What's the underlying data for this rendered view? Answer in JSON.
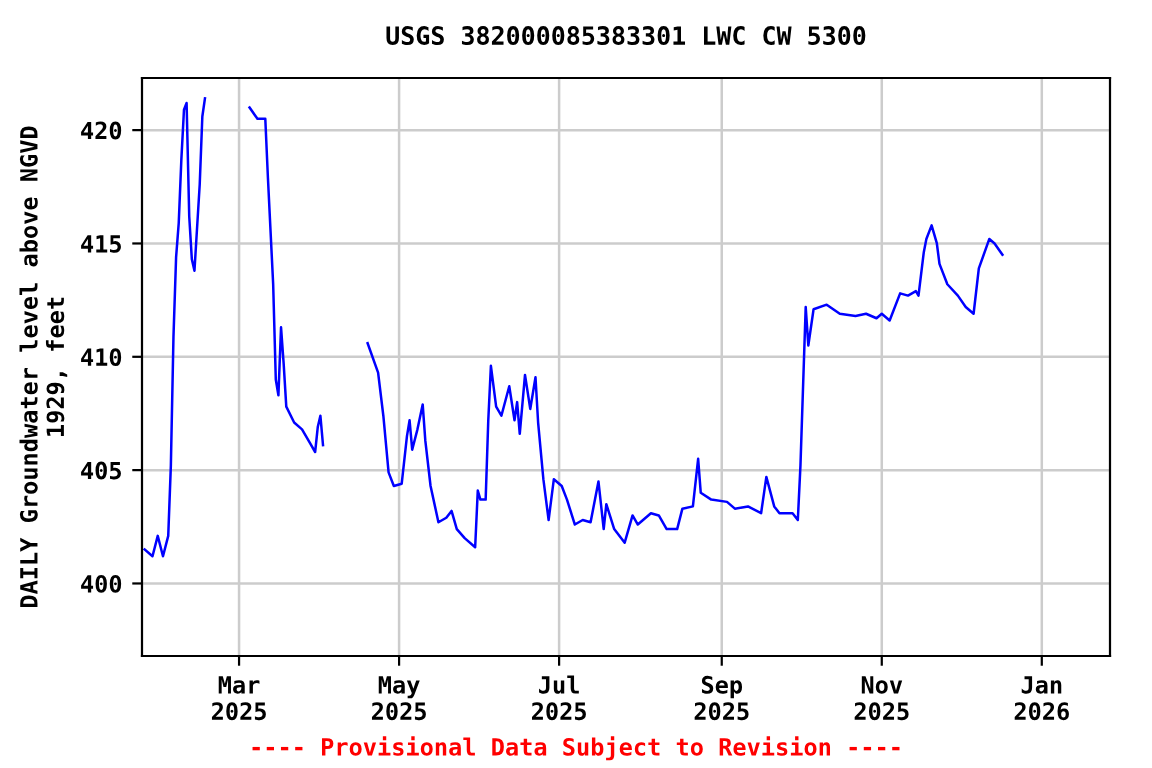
{
  "chart_data": {
    "type": "line",
    "title": "USGS 382000085383301 LWC CW 5300",
    "ylabel": "DAILY Groundwater level above NGVD\n1929, feet",
    "x": [
      "2025-01-24",
      "2025-01-27",
      "2025-01-29",
      "2025-01-31",
      "2025-02-02",
      "2025-02-03",
      "2025-02-04",
      "2025-02-05",
      "2025-02-06",
      "2025-02-07",
      "2025-02-08",
      "2025-02-09",
      "2025-02-10",
      "2025-02-11",
      "2025-02-12",
      "2025-02-14",
      "2025-02-15",
      "2025-02-16",
      "2025-02-25",
      "2025-03-05",
      "2025-03-08",
      "2025-03-11",
      "2025-03-12",
      "2025-03-14",
      "2025-03-15",
      "2025-03-16",
      "2025-03-17",
      "2025-03-18",
      "2025-03-19",
      "2025-03-22",
      "2025-03-25",
      "2025-03-28",
      "2025-03-30",
      "2025-03-31",
      "2025-04-01",
      "2025-04-02",
      "2025-04-10",
      "2025-04-19",
      "2025-04-23",
      "2025-04-25",
      "2025-04-27",
      "2025-04-29",
      "2025-05-02",
      "2025-05-04",
      "2025-05-05",
      "2025-05-06",
      "2025-05-08",
      "2025-05-10",
      "2025-05-11",
      "2025-05-13",
      "2025-05-16",
      "2025-05-19",
      "2025-05-21",
      "2025-05-23",
      "2025-05-26",
      "2025-05-30",
      "2025-05-31",
      "2025-06-01",
      "2025-06-03",
      "2025-06-04",
      "2025-06-05",
      "2025-06-07",
      "2025-06-09",
      "2025-06-12",
      "2025-06-14",
      "2025-06-15",
      "2025-06-16",
      "2025-06-18",
      "2025-06-20",
      "2025-06-22",
      "2025-06-23",
      "2025-06-25",
      "2025-06-27",
      "2025-06-29",
      "2025-07-02",
      "2025-07-04",
      "2025-07-07",
      "2025-07-10",
      "2025-07-13",
      "2025-07-16",
      "2025-07-18",
      "2025-07-19",
      "2025-07-22",
      "2025-07-26",
      "2025-07-29",
      "2025-07-31",
      "2025-08-05",
      "2025-08-08",
      "2025-08-11",
      "2025-08-15",
      "2025-08-17",
      "2025-08-21",
      "2025-08-23",
      "2025-08-24",
      "2025-08-28",
      "2025-09-03",
      "2025-09-06",
      "2025-09-11",
      "2025-09-16",
      "2025-09-18",
      "2025-09-21",
      "2025-09-23",
      "2025-09-28",
      "2025-09-30",
      "2025-10-01",
      "2025-10-02",
      "2025-10-03",
      "2025-10-04",
      "2025-10-06",
      "2025-10-11",
      "2025-10-16",
      "2025-10-22",
      "2025-10-26",
      "2025-10-30",
      "2025-11-01",
      "2025-11-04",
      "2025-11-08",
      "2025-11-11",
      "2025-11-14",
      "2025-11-15",
      "2025-11-17",
      "2025-11-18",
      "2025-11-20",
      "2025-11-22",
      "2025-11-23",
      "2025-11-26",
      "2025-11-30",
      "2025-12-03",
      "2025-12-06",
      "2025-12-08",
      "2025-12-12",
      "2025-12-14",
      "2025-12-17"
    ],
    "series": [
      {
        "color": "#0000ff",
        "values": [
          401.5,
          401.2,
          402.1,
          401.2,
          402.1,
          405.2,
          410.9,
          414.4,
          415.9,
          418.7,
          420.9,
          421.2,
          416.2,
          414.3,
          413.8,
          417.6,
          420.6,
          421.4,
          null,
          421.0,
          420.5,
          420.5,
          417.9,
          413.2,
          409.0,
          408.3,
          411.3,
          409.7,
          407.8,
          407.1,
          406.8,
          406.2,
          405.8,
          406.9,
          407.4,
          406.1,
          null,
          410.6,
          409.3,
          407.4,
          404.9,
          404.3,
          404.4,
          406.5,
          407.2,
          405.9,
          406.8,
          407.9,
          406.3,
          404.3,
          402.7,
          402.9,
          403.2,
          402.4,
          402.0,
          401.6,
          404.1,
          403.7,
          403.7,
          407.2,
          409.6,
          407.8,
          407.4,
          408.7,
          407.2,
          408.0,
          406.6,
          409.2,
          407.7,
          409.1,
          407.1,
          404.6,
          402.8,
          404.6,
          404.3,
          403.7,
          402.6,
          402.8,
          402.7,
          404.5,
          402.4,
          403.5,
          402.4,
          401.8,
          403.0,
          402.6,
          403.1,
          403.0,
          402.4,
          402.4,
          403.3,
          403.4,
          405.5,
          404.0,
          403.7,
          403.6,
          403.3,
          403.4,
          403.1,
          404.7,
          403.4,
          403.1,
          403.1,
          402.8,
          405.2,
          408.7,
          412.2,
          410.5,
          412.1,
          412.3,
          411.9,
          411.8,
          411.9,
          411.7,
          411.9,
          411.6,
          412.8,
          412.7,
          412.9,
          412.7,
          414.6,
          415.2,
          415.8,
          415.0,
          414.1,
          413.2,
          412.7,
          412.2,
          411.9,
          413.9,
          415.2,
          415.0,
          414.5
        ]
      }
    ],
    "xlim": [
      "2025-01-23",
      "2026-01-27"
    ],
    "xticks": [
      {
        "value": "2025-03-01",
        "label": "Mar\n2025"
      },
      {
        "value": "2025-05-01",
        "label": "May\n2025"
      },
      {
        "value": "2025-07-01",
        "label": "Jul\n2025"
      },
      {
        "value": "2025-09-01",
        "label": "Sep\n2025"
      },
      {
        "value": "2025-11-01",
        "label": "Nov\n2025"
      },
      {
        "value": "2026-01-01",
        "label": "Jan\n2026"
      }
    ],
    "ylim": [
      396.8,
      422.3
    ],
    "yticks": [
      400,
      405,
      410,
      415,
      420
    ],
    "grid": true,
    "line_style": "solid",
    "annotations": [
      "---- Provisional Data Subject to Revision ----"
    ]
  }
}
